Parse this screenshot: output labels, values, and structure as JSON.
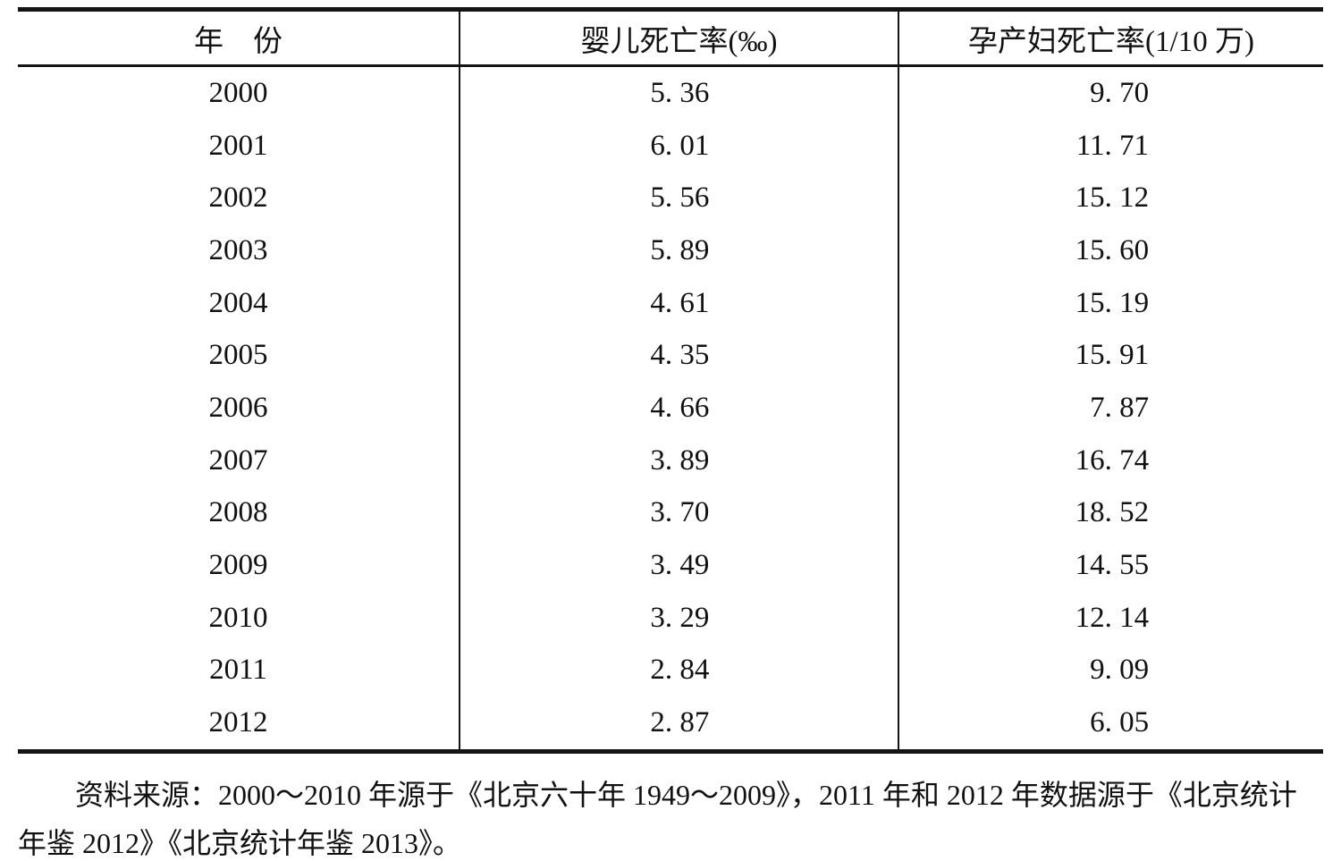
{
  "table": {
    "columns": [
      {
        "label": "年　份"
      },
      {
        "label": "婴儿死亡率(‰)"
      },
      {
        "label": "孕产妇死亡率(1/10 万)"
      }
    ],
    "rows": [
      {
        "year": "2000",
        "infant": "5. 36",
        "maternal": "9. 70"
      },
      {
        "year": "2001",
        "infant": "6. 01",
        "maternal": "11. 71"
      },
      {
        "year": "2002",
        "infant": "5. 56",
        "maternal": "15. 12"
      },
      {
        "year": "2003",
        "infant": "5. 89",
        "maternal": "15. 60"
      },
      {
        "year": "2004",
        "infant": "4. 61",
        "maternal": "15. 19"
      },
      {
        "year": "2005",
        "infant": "4. 35",
        "maternal": "15. 91"
      },
      {
        "year": "2006",
        "infant": "4. 66",
        "maternal": "7. 87"
      },
      {
        "year": "2007",
        "infant": "3. 89",
        "maternal": "16. 74"
      },
      {
        "year": "2008",
        "infant": "3. 70",
        "maternal": "18. 52"
      },
      {
        "year": "2009",
        "infant": "3. 49",
        "maternal": "14. 55"
      },
      {
        "year": "2010",
        "infant": "3. 29",
        "maternal": "12. 14"
      },
      {
        "year": "2011",
        "infant": "2. 84",
        "maternal": "9. 09"
      },
      {
        "year": "2012",
        "infant": "2. 87",
        "maternal": "6. 05"
      }
    ]
  },
  "source_note": {
    "lines": [
      "资料来源：2000～2010 年源于《北京六十年 1949～2009》，2011 年和 2012 年数据源于《北京统计",
      "年鉴 2012》《北京统计年鉴 2013》。"
    ]
  },
  "chart_data": {
    "type": "table",
    "columns": [
      "年份",
      "婴儿死亡率(‰)",
      "孕产妇死亡率(1/10万)"
    ],
    "categories": [
      "2000",
      "2001",
      "2002",
      "2003",
      "2004",
      "2005",
      "2006",
      "2007",
      "2008",
      "2009",
      "2010",
      "2011",
      "2012"
    ],
    "series": [
      {
        "name": "婴儿死亡率(‰)",
        "values": [
          5.36,
          6.01,
          5.56,
          5.89,
          4.61,
          4.35,
          4.66,
          3.89,
          3.7,
          3.49,
          3.29,
          2.84,
          2.87
        ]
      },
      {
        "name": "孕产妇死亡率(1/10万)",
        "values": [
          9.7,
          11.71,
          15.12,
          15.6,
          15.19,
          15.91,
          7.87,
          16.74,
          18.52,
          14.55,
          12.14,
          9.09,
          6.05
        ]
      }
    ],
    "notes": "资料来源：2000～2010年源于《北京六十年1949～2009》，2011年和2012年数据源于《北京统计年鉴2012》《北京统计年鉴2013》。"
  }
}
